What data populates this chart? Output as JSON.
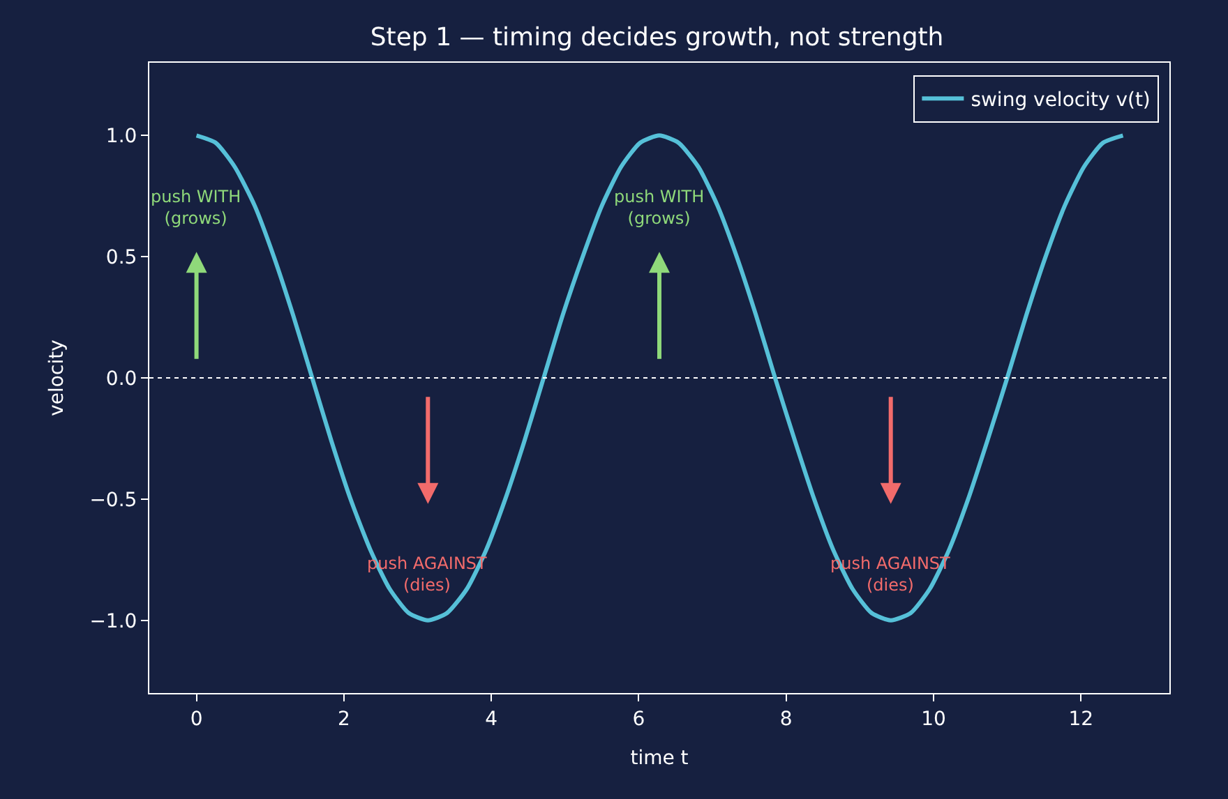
{
  "chart_data": {
    "type": "line",
    "title": "Step 1 — timing decides growth, not strength",
    "xlabel": "time t",
    "ylabel": "velocity",
    "x": [
      0,
      0.26,
      0.52,
      0.79,
      1.05,
      1.31,
      1.57,
      1.83,
      2.09,
      2.36,
      2.62,
      2.88,
      3.14,
      3.4,
      3.67,
      3.93,
      4.19,
      4.45,
      4.71,
      4.97,
      5.24,
      5.5,
      5.76,
      6.02,
      6.28,
      6.54,
      6.81,
      7.07,
      7.33,
      7.59,
      7.85,
      8.12,
      8.38,
      8.64,
      8.9,
      9.16,
      9.42,
      9.69,
      9.95,
      10.21,
      10.47,
      10.73,
      11.0,
      11.26,
      11.52,
      11.78,
      12.04,
      12.3,
      12.57
    ],
    "series": [
      {
        "name": "swing velocity v(t)",
        "color": "#56c0d8",
        "values": [
          1,
          0.97,
          0.87,
          0.71,
          0.5,
          0.26,
          0,
          -0.26,
          -0.5,
          -0.71,
          -0.87,
          -0.97,
          -1,
          -0.97,
          -0.87,
          -0.71,
          -0.5,
          -0.26,
          0,
          0.26,
          0.5,
          0.71,
          0.87,
          0.97,
          1,
          0.97,
          0.87,
          0.71,
          0.5,
          0.26,
          0,
          -0.26,
          -0.5,
          -0.71,
          -0.87,
          -0.97,
          -1,
          -0.97,
          -0.87,
          -0.71,
          -0.5,
          -0.26,
          0,
          0.26,
          0.5,
          0.71,
          0.87,
          0.97,
          1
        ]
      }
    ],
    "xlim": [
      -0.64,
      13.2
    ],
    "ylim": [
      -1.3,
      1.3
    ],
    "xticks": [
      0,
      2,
      4,
      6,
      8,
      10,
      12
    ],
    "yticks": [
      {
        "value": -1,
        "label": "−1.0"
      },
      {
        "value": -0.5,
        "label": "−0.5"
      },
      {
        "value": 0,
        "label": "0.0"
      },
      {
        "value": 0.5,
        "label": "0.5"
      },
      {
        "value": 1,
        "label": "1.0"
      }
    ],
    "ref_lines": [
      {
        "axis": "y",
        "value": 0,
        "label": null,
        "color": "#ffffff",
        "line_style": "dotted"
      }
    ],
    "annotations": [
      "push WITH\n(grows)",
      "push AGAINST\n(dies)",
      "push WITH\n(grows)",
      "push AGAINST\n(dies)"
    ],
    "grid": false,
    "legend": "top right",
    "line_style": "solid",
    "marker": "none"
  }
}
